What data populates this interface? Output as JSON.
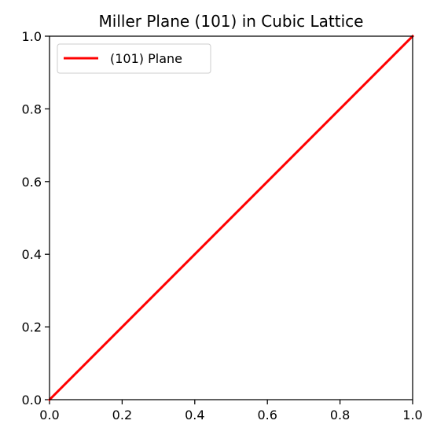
{
  "chart_data": {
    "type": "line",
    "title": "Miller Plane (101) in Cubic Lattice",
    "xlabel": "",
    "ylabel": "",
    "xlim": [
      0,
      1
    ],
    "ylim": [
      0,
      1
    ],
    "x_ticks": [
      0.0,
      0.2,
      0.4,
      0.6,
      0.8,
      1.0
    ],
    "y_ticks": [
      0.0,
      0.2,
      0.4,
      0.6,
      0.8,
      1.0
    ],
    "x_tick_labels": [
      "0.0",
      "0.2",
      "0.4",
      "0.6",
      "0.8",
      "1.0"
    ],
    "y_tick_labels": [
      "0.0",
      "0.2",
      "0.4",
      "0.6",
      "0.8",
      "1.0"
    ],
    "grid": false,
    "legend_position": "top-left",
    "series": [
      {
        "name": "(101) Plane",
        "color": "#ff0000",
        "x": [
          0,
          1
        ],
        "y": [
          0,
          1
        ]
      }
    ]
  }
}
